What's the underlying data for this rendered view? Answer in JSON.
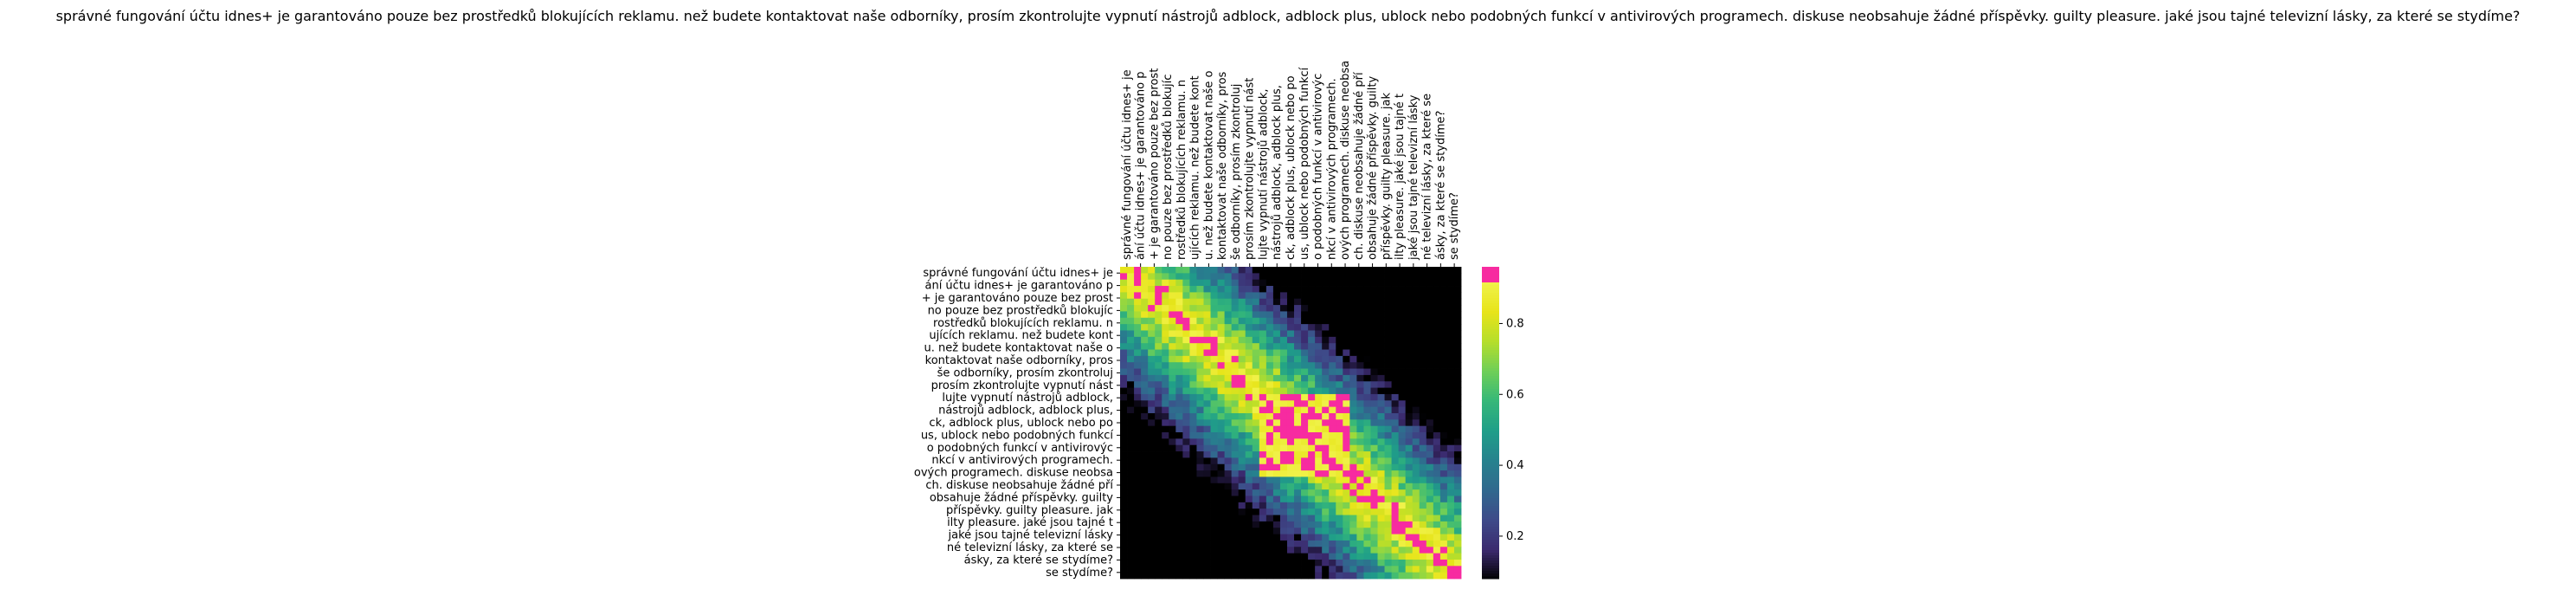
{
  "chart_data": {
    "type": "heatmap",
    "title": "správné fungování účtu idnes+ je garantováno pouze bez prostředků blokujících reklamu. než budete kontaktovat naše odborníky, prosím zkontrolujte vypnutí nástrojů adblock, adblock plus, ublock nebo podobných funkcí v antivirových programech. diskuse neobsahuje žádné příspěvky. guilty pleasure. jaké jsou tajné televizní lásky, za které se stydíme?",
    "tick_labels": [
      "správné fungování účtu idnes+ je",
      "ání účtu idnes+ je garantováno p",
      "+ je garantováno pouze bez prost",
      "no pouze bez prostředků blokujíc",
      "rostředků blokujících reklamu. n",
      "ujících reklamu. než budete kont",
      "u. než budete kontaktovat naše o",
      "kontaktovat naše odborníky, pros",
      "še odborníky, prosím zkontroluj",
      "prosím zkontrolujte vypnutí nást",
      "lujte vypnutí nástrojů adblock,",
      "nástrojů adblock, adblock plus,",
      "ck, adblock plus, ublock nebo po",
      "us, ublock nebo podobných funkcí",
      "o podobných funkcí v antivirovýc",
      "nkcí v antivirových programech.",
      "ových programech. diskuse neobsa",
      "ch. diskuse neobsahuje žádné pří",
      "obsahuje žádné příspěvky. guilty",
      "příspěvky. guilty pleasure. jak",
      "ilty pleasure. jaké jsou tajné t",
      "jaké jsou tajné televizní lásky",
      "né televizní lásky, za které se",
      "ásky, za které se stydíme?",
      "se stydíme?"
    ],
    "colorbar": {
      "ticks": [
        0.2,
        0.4,
        0.6,
        0.8
      ],
      "range": [
        0.08,
        0.96
      ],
      "colors": [
        "#000000",
        "#3b2a6e",
        "#3e4a89",
        "#31688e",
        "#26828e",
        "#1f9e89",
        "#35b779",
        "#6ece58",
        "#b5de2b",
        "#e7e419",
        "#f0f24a",
        "#f72ba0"
      ]
    },
    "matrix_size": 49,
    "grid": false
  }
}
